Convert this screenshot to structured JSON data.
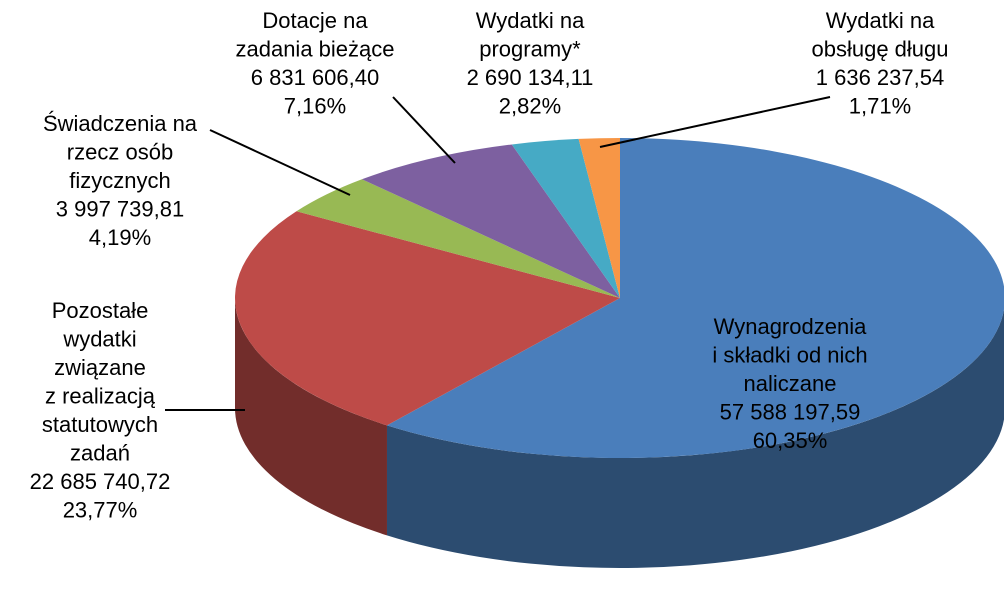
{
  "chart_data": {
    "type": "pie3d",
    "categories": [
      "Wynagrodzenia\ni składki od nich\nnaliczane",
      "Pozostałe\nwydatki\nzwiązane\nz realizacją\nstatutowych\nzadań",
      "Świadczenia na\nrzecz osób\nfizycznych",
      "Dotacje na\nzadania bieżące",
      "Wydatki na\nprogramy*",
      "Wydatki na\nobsługę długu"
    ],
    "values": [
      57588197.59,
      22685740.72,
      3997739.81,
      6831606.4,
      2690134.11,
      1636237.54
    ],
    "value_labels": [
      "57 588 197,59",
      "22 685 740,72",
      "3 997 739,81",
      "6 831 606,40",
      "2 690 134,11",
      "1 636 237,54"
    ],
    "percentages": [
      60.35,
      23.77,
      4.19,
      7.16,
      2.82,
      1.71
    ],
    "percentage_labels": [
      "60,35%",
      "23,77%",
      "4,19%",
      "7,16%",
      "2,82%",
      "1,71%"
    ],
    "colors": [
      "#4a7ebb",
      "#be4b48",
      "#98b954",
      "#7d60a0",
      "#46aac5",
      "#f79646"
    ]
  }
}
